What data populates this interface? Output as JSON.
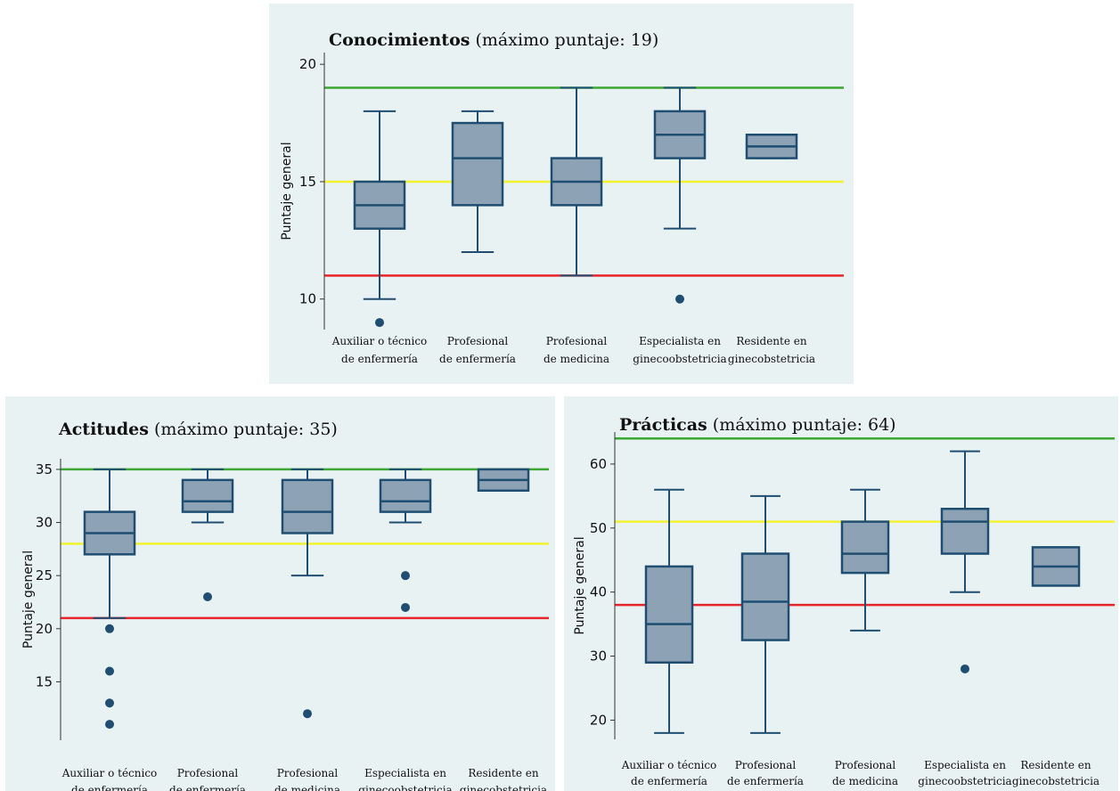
{
  "chart_data": [
    {
      "type": "box",
      "title_bold": "Conocimientos",
      "title_rest": " (máximo puntaje: 19)",
      "ylabel": "Puntaje general",
      "yticks": [
        10,
        15,
        20
      ],
      "ylim": [
        8.7,
        20.5
      ],
      "reference_lines": [
        {
          "value": 19,
          "color": "#3aa832"
        },
        {
          "value": 15,
          "color": "#f2f230"
        },
        {
          "value": 11,
          "color": "#e8242a"
        }
      ],
      "categories": [
        [
          "Auxiliar o técnico",
          "de enfermería"
        ],
        [
          "Profesional",
          "de enfermería"
        ],
        [
          "Profesional",
          "de medicina"
        ],
        [
          "Especialista en",
          "ginecoobstetricia"
        ],
        [
          "Residente en",
          "ginecobstetricia"
        ]
      ],
      "boxes": [
        {
          "whisker_low": 10,
          "q1": 13,
          "median": 14,
          "q3": 15,
          "whisker_high": 18,
          "outliers": [
            9
          ]
        },
        {
          "whisker_low": 12,
          "q1": 14,
          "median": 16,
          "q3": 17.5,
          "whisker_high": 18,
          "outliers": []
        },
        {
          "whisker_low": 11,
          "q1": 14,
          "median": 15,
          "q3": 16,
          "whisker_high": 19,
          "outliers": []
        },
        {
          "whisker_low": 13,
          "q1": 16,
          "median": 17,
          "q3": 18,
          "whisker_high": 19,
          "outliers": [
            10
          ]
        },
        {
          "whisker_low": 16,
          "q1": 16,
          "median": 16.5,
          "q3": 17,
          "whisker_high": 17,
          "outliers": []
        }
      ]
    },
    {
      "type": "box",
      "title_bold": "Actitudes",
      "title_rest": " (máximo puntaje: 35)",
      "ylabel": "Puntaje general",
      "yticks": [
        15,
        20,
        25,
        30,
        35
      ],
      "ylim": [
        9.5,
        36
      ],
      "reference_lines": [
        {
          "value": 35,
          "color": "#3aa832"
        },
        {
          "value": 28,
          "color": "#f2f230"
        },
        {
          "value": 21,
          "color": "#e8242a"
        }
      ],
      "categories": [
        [
          "Auxiliar o técnico",
          "de enfermería"
        ],
        [
          "Profesional",
          "de enfermería"
        ],
        [
          "Profesional",
          "de medicina"
        ],
        [
          "Especialista en",
          "ginecoobstetricia"
        ],
        [
          "Residente en",
          "ginecobstetricia"
        ]
      ],
      "boxes": [
        {
          "whisker_low": 21,
          "q1": 27,
          "median": 29,
          "q3": 31,
          "whisker_high": 35,
          "outliers": [
            20,
            16,
            13,
            11
          ]
        },
        {
          "whisker_low": 30,
          "q1": 31,
          "median": 32,
          "q3": 34,
          "whisker_high": 35,
          "outliers": [
            23
          ]
        },
        {
          "whisker_low": 25,
          "q1": 29,
          "median": 31,
          "q3": 34,
          "whisker_high": 35,
          "outliers": [
            12
          ]
        },
        {
          "whisker_low": 30,
          "q1": 31,
          "median": 32,
          "q3": 34,
          "whisker_high": 35,
          "outliers": [
            25,
            22
          ]
        },
        {
          "whisker_low": 33,
          "q1": 33,
          "median": 34,
          "q3": 35,
          "whisker_high": 35,
          "outliers": []
        }
      ]
    },
    {
      "type": "box",
      "title_bold": "Prácticas",
      "title_rest": " (máximo puntaje: 64)",
      "ylabel": "Puntaje general",
      "yticks": [
        20,
        30,
        40,
        50,
        60
      ],
      "ylim": [
        17,
        65
      ],
      "reference_lines": [
        {
          "value": 64,
          "color": "#3aa832"
        },
        {
          "value": 51,
          "color": "#f2f230"
        },
        {
          "value": 38,
          "color": "#e8242a"
        }
      ],
      "categories": [
        [
          "Auxiliar o técnico",
          "de enfermería"
        ],
        [
          "Profesional",
          "de enfermería"
        ],
        [
          "Profesional",
          "de medicina"
        ],
        [
          "Especialista en",
          "ginecoobstetricia"
        ],
        [
          "Residente en",
          "ginecobstetricia"
        ]
      ],
      "boxes": [
        {
          "whisker_low": 18,
          "q1": 29,
          "median": 35,
          "q3": 44,
          "whisker_high": 56,
          "outliers": []
        },
        {
          "whisker_low": 18,
          "q1": 32.5,
          "median": 38.5,
          "q3": 46,
          "whisker_high": 55,
          "outliers": []
        },
        {
          "whisker_low": 34,
          "q1": 43,
          "median": 46,
          "q3": 51,
          "whisker_high": 56,
          "outliers": []
        },
        {
          "whisker_low": 40,
          "q1": 46,
          "median": 51,
          "q3": 53,
          "whisker_high": 62,
          "outliers": [
            28
          ]
        },
        {
          "whisker_low": 41,
          "q1": 41,
          "median": 44,
          "q3": 47,
          "whisker_high": 47,
          "outliers": []
        }
      ]
    }
  ]
}
